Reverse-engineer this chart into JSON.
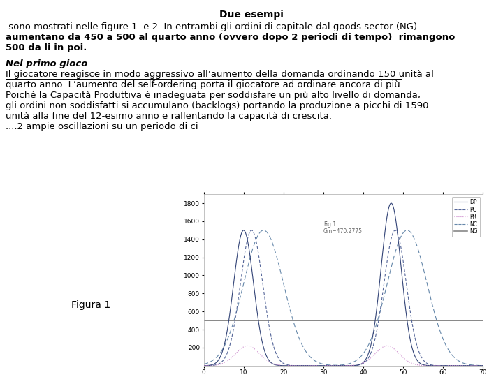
{
  "title": "Due esempi",
  "p1_line1": " sono mostrati nelle figure 1  e 2. In entrambi gli ordini di capitale dal goods sector (NG)",
  "p1_line2": "aumentano da 450 a 500 al quarto anno (ovvero dopo 2 periodi di tempo)  rimangono",
  "p1_line3": "500 da li in poi.",
  "section_title": "Nel primo gioco",
  "p2_underlined": "Il giocatore reagisce in modo aggressivo all’aumento della domanda ordinando 150 unità al",
  "p2_line2": "quarto anno. L’aumento del self-ordering porta il giocatore ad ordinare ancora di più.",
  "p2_line3": "Poiché la Capacità Produttiva è inadeguata per soddisfare un più alto livello di domanda,",
  "p2_line4": "gli ordini non soddisfatti si accumulano (backlogs) portando la produzione a picchi di 1590",
  "p2_line5": "unità alla fine del 12-esimo anno e rallentando la capacità di crescita.",
  "p2_line6": "....2 ampie oscillazioni su un periodo di ci",
  "figura_label": "Figura 1",
  "annotation": "Fig.1\nGm=470.2775",
  "legend_labels": [
    "DP",
    "PC",
    "PR",
    "NC",
    "NG"
  ],
  "x_ticks": [
    0,
    10,
    20,
    30,
    40,
    50,
    60,
    70
  ],
  "y_ticks": [
    200,
    400,
    600,
    800,
    1000,
    1200,
    1400,
    1600,
    1800
  ],
  "y_min": 0,
  "y_max": 1900,
  "x_min": 0,
  "x_max": 70,
  "ng_value": 500,
  "background_color": "#ffffff"
}
